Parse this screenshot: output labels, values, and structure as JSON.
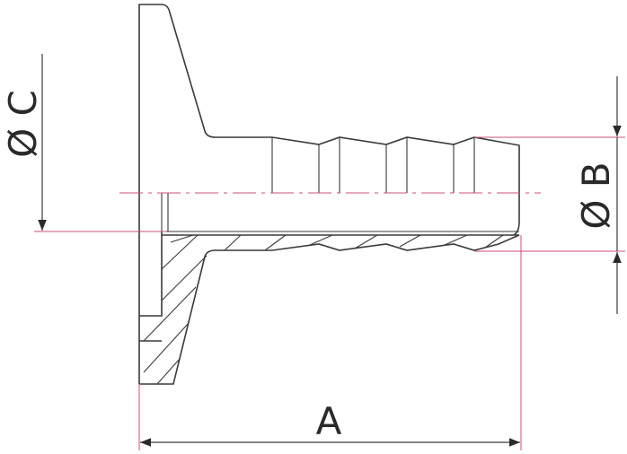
{
  "labels": {
    "dim_c": "Ø C",
    "dim_b": "Ø B",
    "dim_a": "A"
  }
}
